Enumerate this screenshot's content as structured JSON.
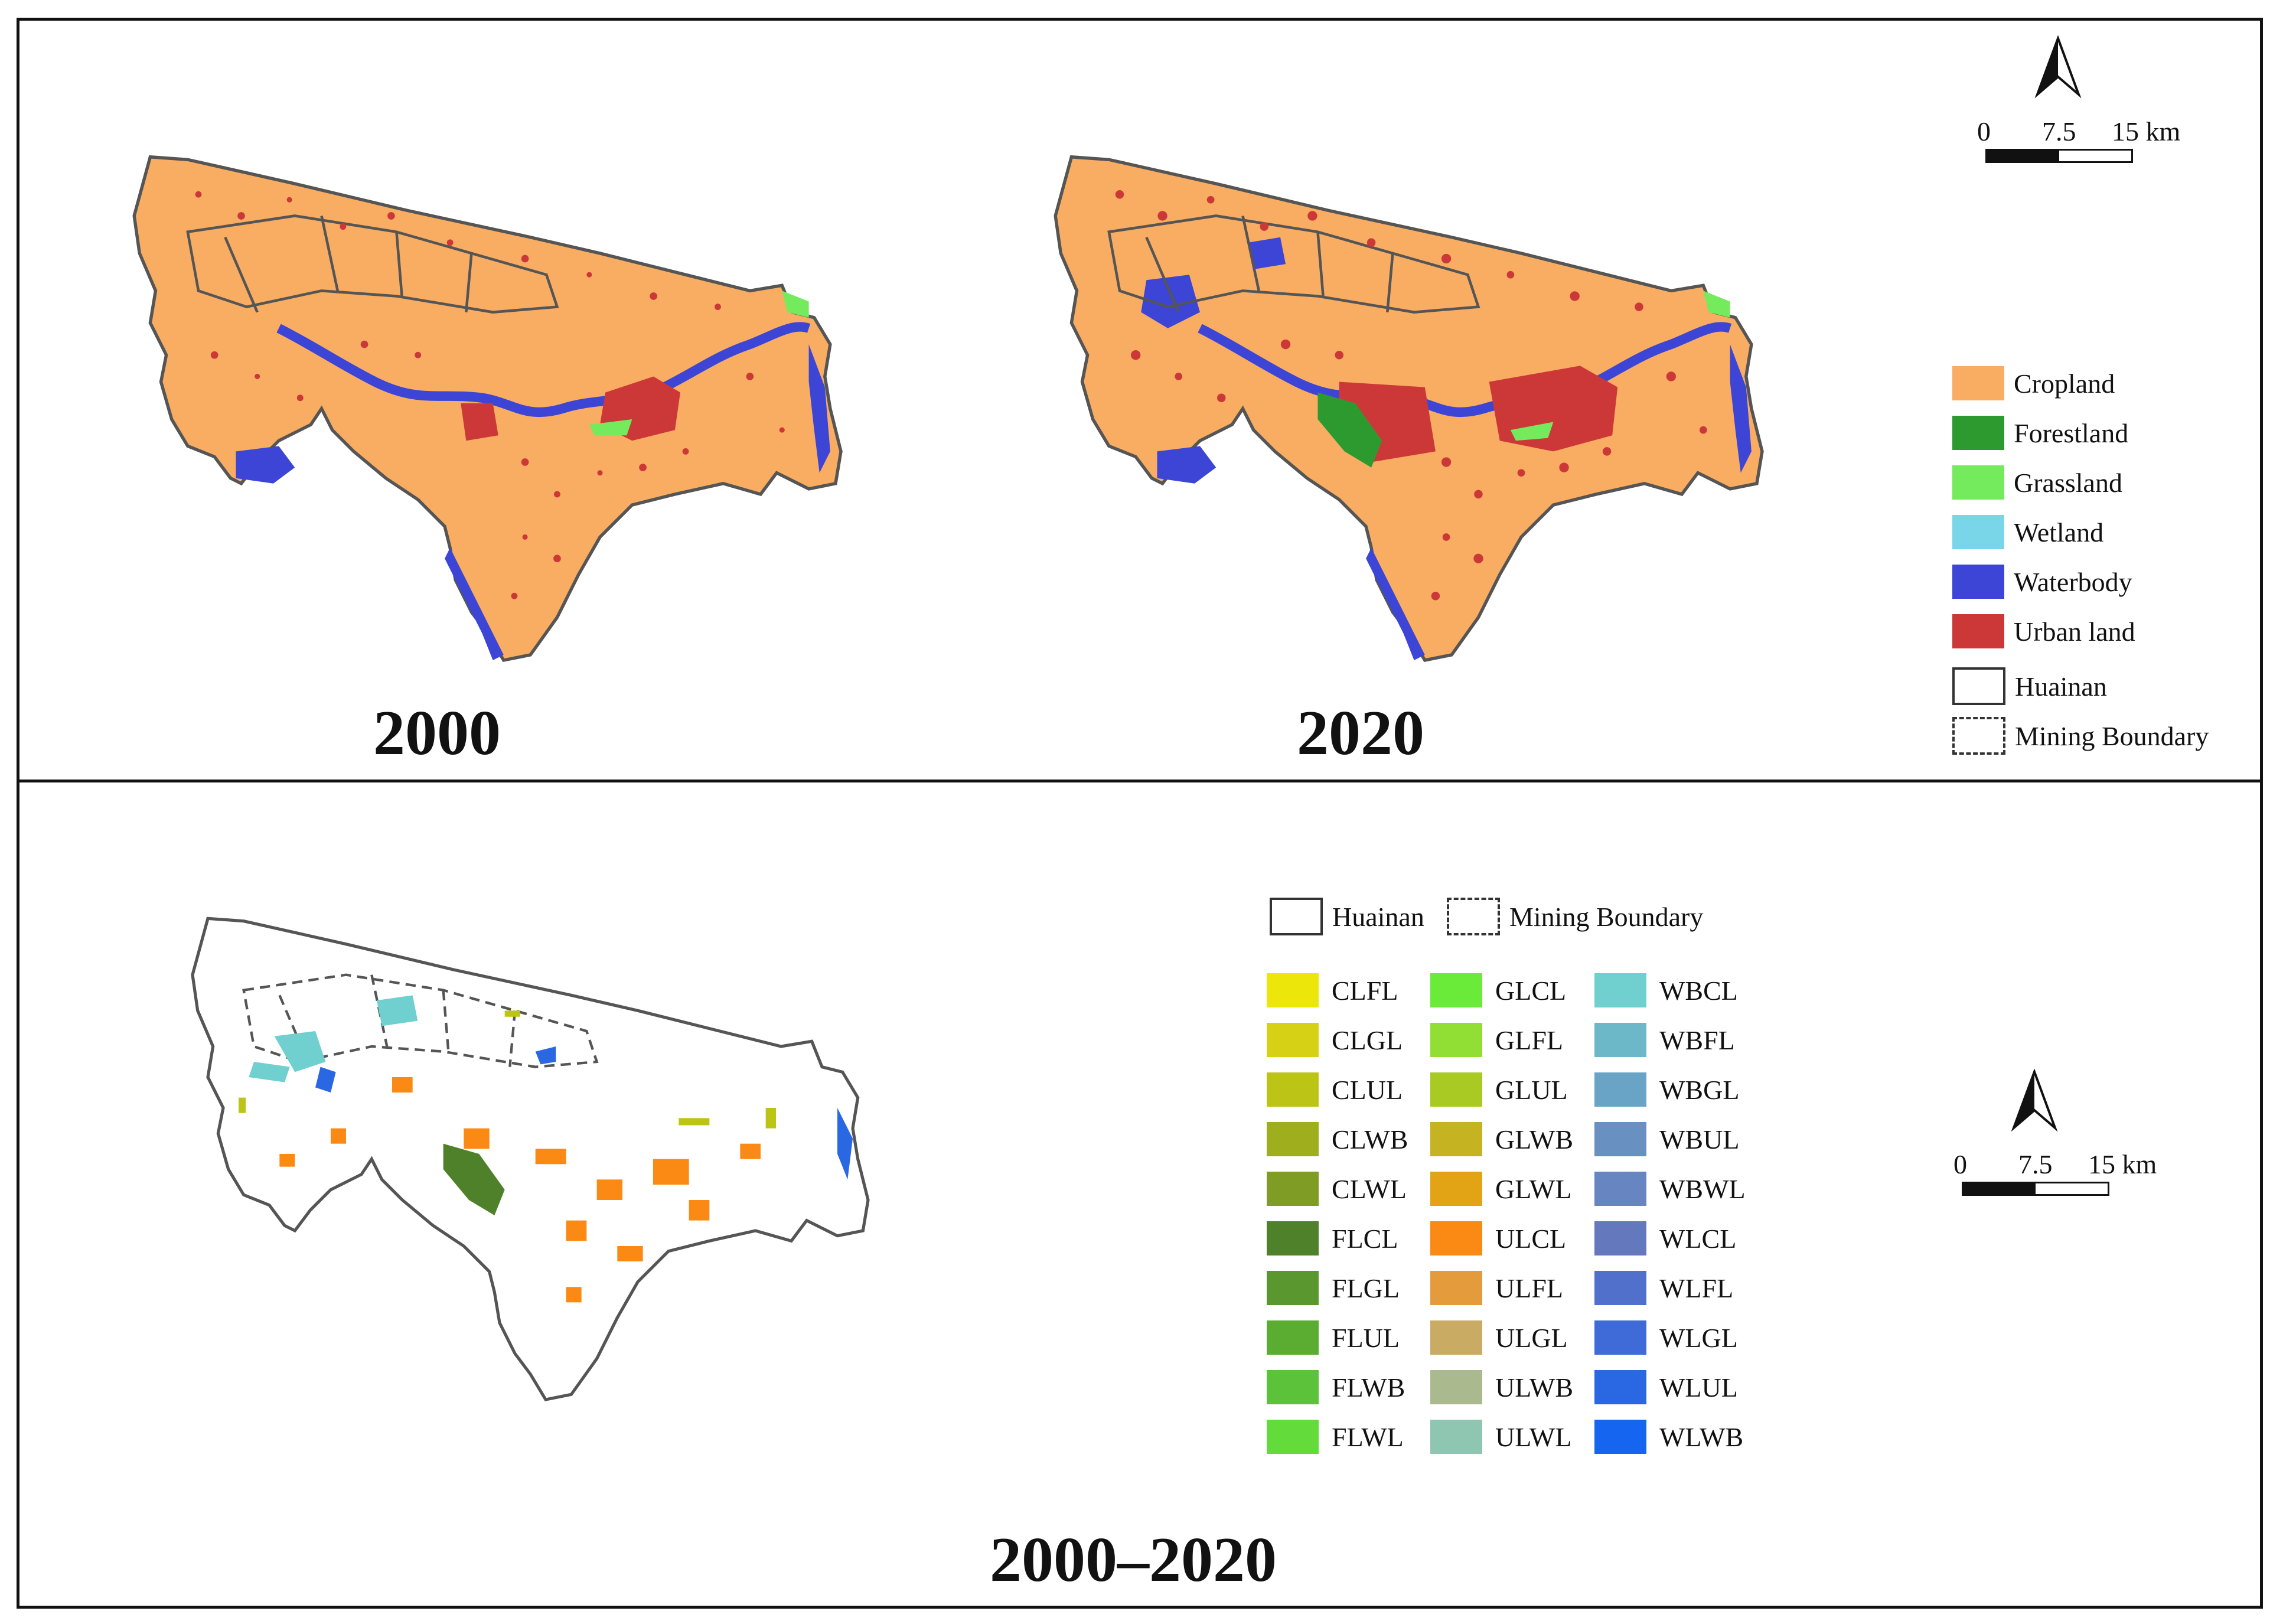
{
  "panels": {
    "top_left_year": "2000",
    "top_right_year": "2020",
    "bottom_year": "2000–2020"
  },
  "scale_bar": {
    "ticks": [
      "0",
      "7.5",
      "15 km"
    ]
  },
  "legend_landuse": [
    {
      "label": "Cropland",
      "color": "#f8ad63"
    },
    {
      "label": "Forestland",
      "color": "#2d9a30"
    },
    {
      "label": "Grassland",
      "color": "#74ea5d"
    },
    {
      "label": "Wetland",
      "color": "#79d6e8"
    },
    {
      "label": "Waterbody",
      "color": "#3c45d6"
    },
    {
      "label": "Urban land",
      "color": "#cc3838"
    }
  ],
  "legend_boundaries": {
    "huainan": "Huainan",
    "mining": "Mining Boundary"
  },
  "legend_change": [
    {
      "label": "CLFL",
      "color": "#ece60a"
    },
    {
      "label": "CLGL",
      "color": "#d7d116"
    },
    {
      "label": "CLUL",
      "color": "#bcc416"
    },
    {
      "label": "CLWB",
      "color": "#9eae1c"
    },
    {
      "label": "CLWL",
      "color": "#7f9c25"
    },
    {
      "label": "FLCL",
      "color": "#4f812a"
    },
    {
      "label": "FLGL",
      "color": "#5a972e"
    },
    {
      "label": "FLUL",
      "color": "#5aad31"
    },
    {
      "label": "FLWB",
      "color": "#5bc23a"
    },
    {
      "label": "FLWL",
      "color": "#63dc3b"
    },
    {
      "label": "GLCL",
      "color": "#6aeb3a"
    },
    {
      "label": "GLFL",
      "color": "#91df35"
    },
    {
      "label": "GLUL",
      "color": "#a9c923"
    },
    {
      "label": "GLWB",
      "color": "#c5b322"
    },
    {
      "label": "GLWL",
      "color": "#e2a314"
    },
    {
      "label": "ULCL",
      "color": "#fa8a14"
    },
    {
      "label": "ULFL",
      "color": "#e39b3b"
    },
    {
      "label": "ULGL",
      "color": "#c9ab64"
    },
    {
      "label": "ULWB",
      "color": "#abb98f"
    },
    {
      "label": "ULWL",
      "color": "#8fc6b2"
    },
    {
      "label": "WBCL",
      "color": "#70cfcf"
    },
    {
      "label": "WBFL",
      "color": "#6cb8c8"
    },
    {
      "label": "WBGL",
      "color": "#69a4c6"
    },
    {
      "label": "WBUL",
      "color": "#6891c1"
    },
    {
      "label": "WBWL",
      "color": "#6786c1"
    },
    {
      "label": "WLCL",
      "color": "#6478be"
    },
    {
      "label": "WLFL",
      "color": "#5170cc"
    },
    {
      "label": "WLGL",
      "color": "#3e6bd7"
    },
    {
      "label": "WLUL",
      "color": "#2a68e3"
    },
    {
      "label": "WLWB",
      "color": "#1565f0"
    }
  ]
}
